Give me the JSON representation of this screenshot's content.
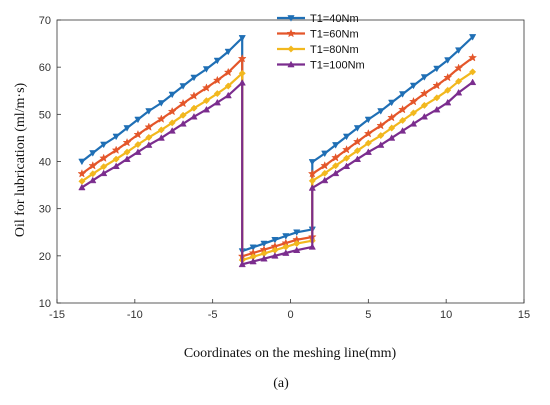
{
  "chart_data": {
    "type": "line",
    "title": "",
    "xlabel": "Coordinates on the meshing line(mm)",
    "ylabel": "Oil for lubrication (ml/m·s)",
    "caption": "(a)",
    "xlim": [
      -15,
      15
    ],
    "ylim": [
      10,
      70
    ],
    "xticks": [
      -15,
      -10,
      -5,
      0,
      5,
      10,
      15
    ],
    "yticks": [
      10,
      20,
      30,
      40,
      50,
      60,
      70
    ],
    "grid": false,
    "legend_position": "top-center",
    "x": [
      -13.4,
      -12.7,
      -12.0,
      -11.2,
      -10.5,
      -9.8,
      -9.1,
      -8.3,
      -7.6,
      -6.9,
      -6.2,
      -5.4,
      -4.7,
      -4.0,
      -3.1,
      -3.1,
      -2.4,
      -1.7,
      -1.0,
      -0.3,
      0.4,
      1.4,
      1.4,
      2.2,
      2.9,
      3.6,
      4.3,
      5.0,
      5.8,
      6.5,
      7.2,
      7.9,
      8.6,
      9.4,
      10.1,
      10.8,
      11.7
    ],
    "series": [
      {
        "name": "T1=40Nm",
        "color": "#1f6fb5",
        "marker": "triangle-down",
        "values": [
          40.0,
          41.8,
          43.6,
          45.3,
          47.1,
          48.9,
          50.7,
          52.4,
          54.2,
          56.0,
          57.8,
          59.6,
          61.4,
          63.3,
          66.2,
          21.0,
          21.8,
          22.6,
          23.4,
          24.2,
          25.0,
          25.6,
          39.9,
          41.7,
          43.5,
          45.3,
          47.1,
          48.9,
          50.7,
          52.5,
          54.3,
          56.1,
          57.9,
          59.7,
          61.5,
          63.6,
          66.4
        ]
      },
      {
        "name": "T1=60Nm",
        "color": "#e4562a",
        "marker": "star",
        "values": [
          37.4,
          39.1,
          40.7,
          42.4,
          44.0,
          45.7,
          47.3,
          49.0,
          50.6,
          52.3,
          53.9,
          55.6,
          57.2,
          58.9,
          61.8,
          19.9,
          20.6,
          21.3,
          22.0,
          22.7,
          23.4,
          24.0,
          37.4,
          39.1,
          40.8,
          42.5,
          44.2,
          45.9,
          47.6,
          49.3,
          51.0,
          52.7,
          54.4,
          56.1,
          57.8,
          59.8,
          62.0
        ]
      },
      {
        "name": "T1=80Nm",
        "color": "#f2b81e",
        "marker": "diamond",
        "values": [
          35.8,
          37.4,
          38.9,
          40.5,
          42.0,
          43.6,
          45.1,
          46.7,
          48.2,
          49.8,
          51.3,
          52.9,
          54.4,
          56.0,
          58.7,
          19.1,
          19.8,
          20.5,
          21.2,
          21.9,
          22.6,
          23.2,
          35.9,
          37.5,
          39.1,
          40.7,
          42.3,
          43.9,
          45.5,
          47.1,
          48.7,
          50.3,
          51.9,
          53.5,
          55.1,
          57.0,
          59.0
        ]
      },
      {
        "name": "T1=100Nm",
        "color": "#7b2d8e",
        "marker": "triangle-up",
        "values": [
          34.5,
          36.0,
          37.5,
          39.0,
          40.5,
          42.0,
          43.5,
          45.0,
          46.5,
          48.0,
          49.5,
          51.0,
          52.5,
          54.0,
          56.7,
          18.2,
          18.8,
          19.4,
          20.0,
          20.6,
          21.2,
          21.9,
          34.4,
          36.0,
          37.5,
          39.0,
          40.5,
          42.0,
          43.5,
          45.0,
          46.5,
          48.0,
          49.5,
          51.0,
          52.5,
          54.6,
          56.8
        ]
      }
    ]
  }
}
